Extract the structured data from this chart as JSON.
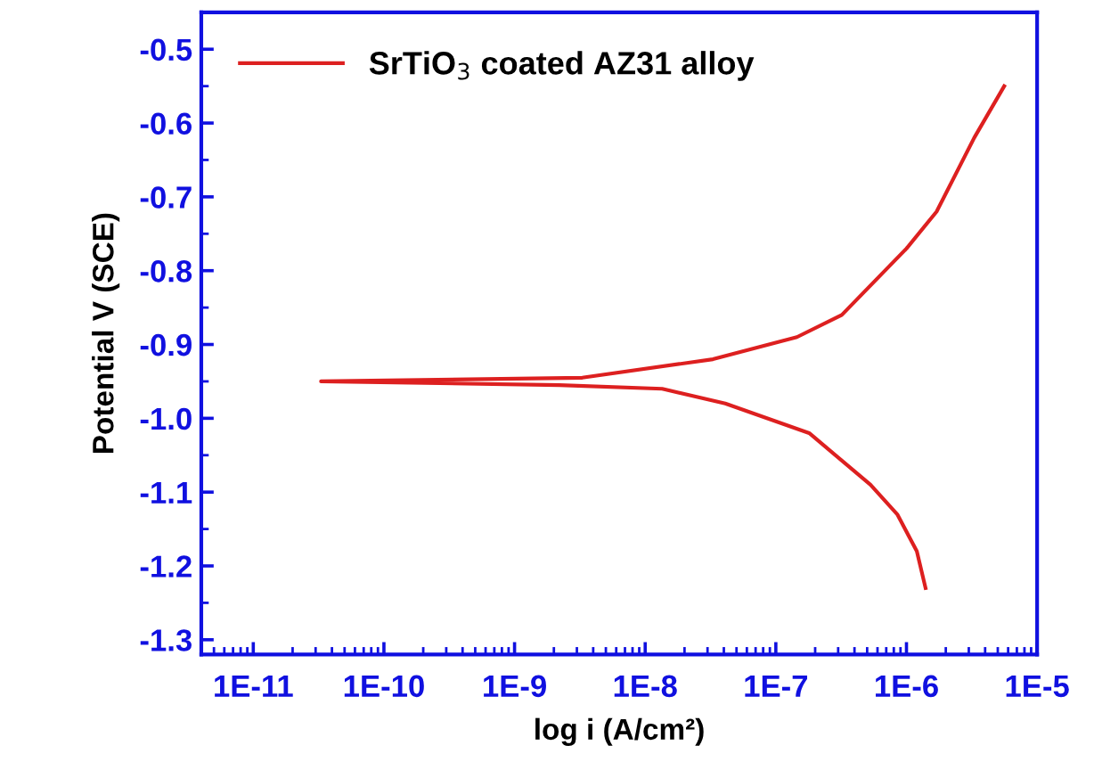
{
  "chart_data": {
    "type": "line",
    "xlabel": "log i (A/cm²)",
    "ylabel": "Potential V (SCE)",
    "log": "x",
    "series": [
      {
        "name": "SrTiO$_{3}$ coated AZ31 alloy",
        "color": "#dd2020",
        "x": [
          1.4e-06,
          1.2e-06,
          8.5e-07,
          5.3e-07,
          1.8e-07,
          4.1e-08,
          1.35e-08,
          2.2e-09,
          3.3e-11,
          3.3e-09,
          3.3e-08,
          1.45e-07,
          3.2e-07,
          1e-06,
          1.7e-06,
          3.3e-06,
          5.6e-06
        ],
        "values": [
          -1.23,
          -1.18,
          -1.13,
          -1.09,
          -1.02,
          -0.98,
          -0.96,
          -0.955,
          -0.95,
          -0.945,
          -0.92,
          -0.89,
          -0.86,
          -0.77,
          -0.72,
          -0.62,
          -0.55
        ]
      }
    ],
    "xlim": [
      4e-12,
      1e-05
    ],
    "xticks": [
      {
        "value": 1e-11,
        "label": "1E-11"
      },
      {
        "value": 1e-10,
        "label": "1E-10"
      },
      {
        "value": 1e-09,
        "label": "1E-9"
      },
      {
        "value": 1e-08,
        "label": "1E-8"
      },
      {
        "value": 1e-07,
        "label": "1E-7"
      },
      {
        "value": 1e-06,
        "label": "1E-6"
      },
      {
        "value": 1e-05,
        "label": "1E-5"
      }
    ],
    "ylim": [
      -1.32,
      -0.45
    ],
    "yticks": [
      -0.5,
      -0.6,
      -0.7,
      -0.8,
      -0.9,
      {
        "value": -1.0,
        "label": "-1.0"
      },
      -1.1,
      -1.2,
      -1.3
    ],
    "grid": false,
    "legend": "top left",
    "marker": "none",
    "line_style": "solid"
  }
}
